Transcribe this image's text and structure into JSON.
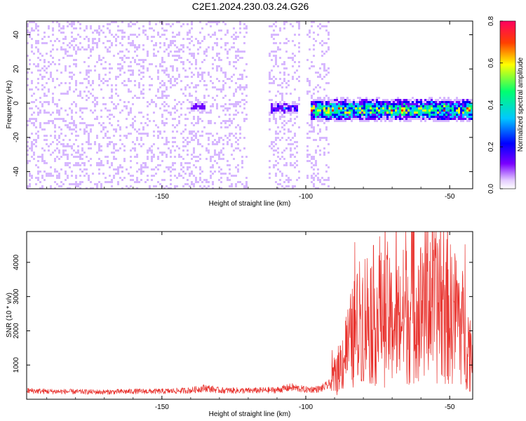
{
  "title": "C2E1.2024.230.03.24.G26",
  "colors": {
    "snr_line": "#e8302b",
    "spectrogram_palette": [
      "#ffffff",
      "#d7b8ff",
      "#6e00ff",
      "#0000ff",
      "#00c8ff",
      "#00ff80",
      "#ffff00",
      "#ff2000"
    ]
  },
  "chart_data": [
    {
      "type": "heatmap",
      "xlabel": "Height of straight line (km)",
      "ylabel": "Frequency (Hz)",
      "xlim": [
        -197,
        -42
      ],
      "ylim": [
        -50,
        48
      ],
      "xticks": [
        -150,
        -100,
        -50
      ],
      "yticks": [
        -40,
        -20,
        0,
        20,
        40
      ],
      "colorbar": {
        "label": "Normalized spectral amplitude",
        "range": [
          0,
          0.8
        ],
        "ticks": [
          0,
          0.2,
          0.4,
          0.6,
          0.8
        ]
      },
      "regions": [
        {
          "x_range": [
            -197,
            -92
          ],
          "freq_range": [
            -50,
            48
          ],
          "description": "broadband noise, amplitude about 0.02-0.15"
        },
        {
          "x_range": [
            -140,
            -135
          ],
          "freq_center": -2,
          "peak_amplitude": 0.3
        },
        {
          "x_range": [
            -112,
            -103
          ],
          "freq_center": -3,
          "peak_amplitude": 0.35
        },
        {
          "x_range": [
            -98,
            -42
          ],
          "freq_center": -4,
          "freq_halfwidth": 6,
          "peak_amplitude": 0.75
        }
      ]
    },
    {
      "type": "line",
      "xlabel": "Height of straight line (km)",
      "ylabel": "SNR (10 * v/v)",
      "xlim": [
        -197,
        -42
      ],
      "ylim": [
        0,
        4900
      ],
      "xticks": [
        -150,
        -100,
        -50
      ],
      "yticks": [
        1000,
        2000,
        3000,
        4000
      ],
      "series": [
        {
          "x": [
            -197,
            -190,
            -180,
            -170,
            -160,
            -150,
            -140,
            -135,
            -130,
            -120,
            -110,
            -105,
            -100,
            -95,
            -92,
            -90,
            -88,
            -85,
            -82,
            -80,
            -78,
            -75,
            -72,
            -70,
            -68,
            -65,
            -62,
            -60,
            -58,
            -56,
            -55,
            -52,
            -50,
            -48,
            -46,
            -44,
            -42
          ],
          "y": [
            250,
            230,
            220,
            210,
            230,
            230,
            260,
            330,
            260,
            250,
            270,
            350,
            280,
            300,
            420,
            600,
            1000,
            1600,
            2100,
            2400,
            2500,
            2400,
            2300,
            2200,
            2300,
            2500,
            2700,
            2600,
            2900,
            3000,
            2700,
            2600,
            2500,
            2400,
            2200,
            1700,
            1300
          ]
        }
      ]
    }
  ]
}
